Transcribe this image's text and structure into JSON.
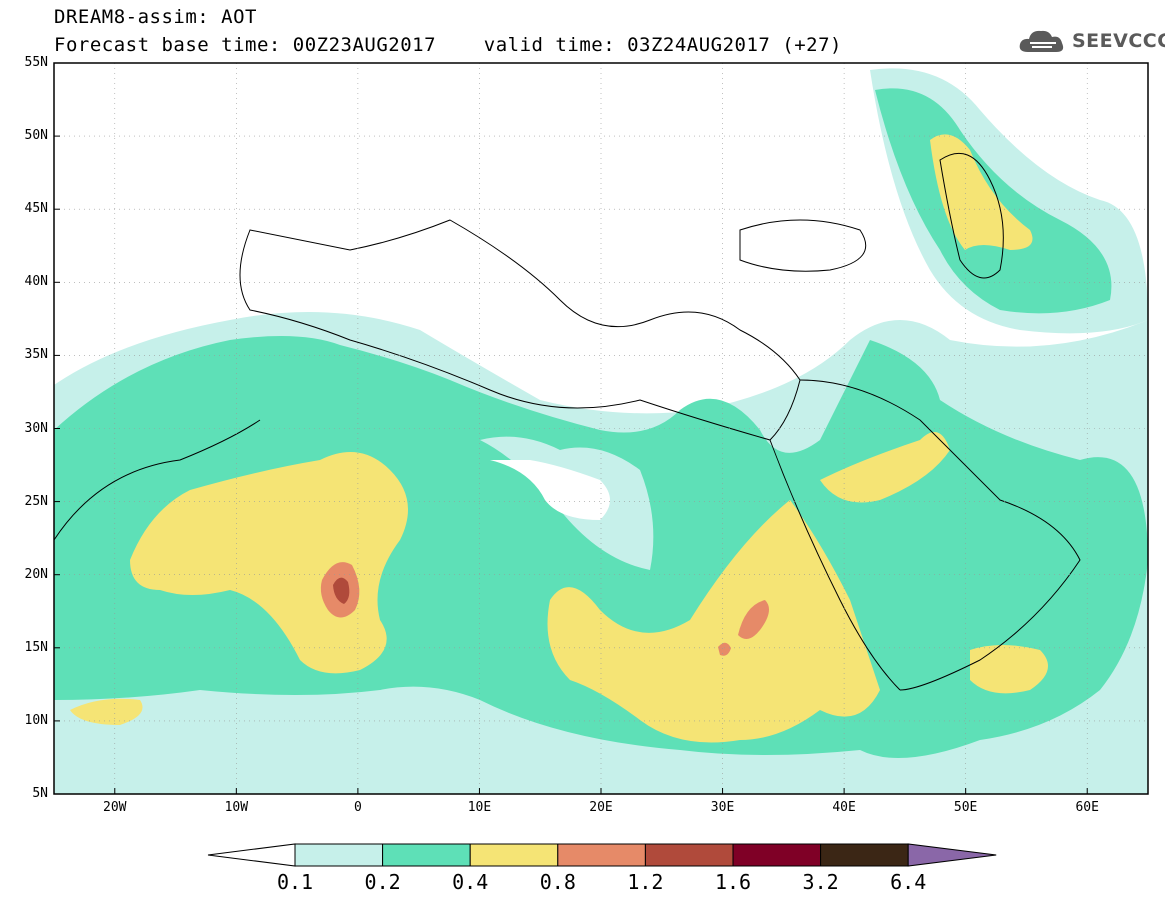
{
  "title": {
    "line1": "DREAM8-assim: AOT",
    "line2": "Forecast base time: 00Z23AUG2017    valid time: 03Z24AUG2017 (+27)"
  },
  "logo": {
    "text": "SEEVCCC",
    "icon": "cloud-icon"
  },
  "map": {
    "lat_labels": [
      "55N",
      "50N",
      "45N",
      "40N",
      "35N",
      "30N",
      "25N",
      "20N",
      "15N",
      "10N",
      "5N"
    ],
    "lon_labels": [
      "20W",
      "10W",
      "0",
      "10E",
      "20E",
      "30E",
      "40E",
      "50E",
      "60E"
    ],
    "extent": {
      "lon": [
        -25,
        65
      ],
      "lat": [
        5,
        55
      ]
    }
  },
  "colorbar": {
    "labels": [
      "0.1",
      "0.2",
      "0.4",
      "0.8",
      "1.2",
      "1.6",
      "3.2",
      "6.4"
    ],
    "colors": [
      "#c6f0ea",
      "#5ee0b7",
      "#f5e475",
      "#e68a68",
      "#b04a3b",
      "#7f0026",
      "#3b2615",
      "#8a67a8"
    ]
  }
}
